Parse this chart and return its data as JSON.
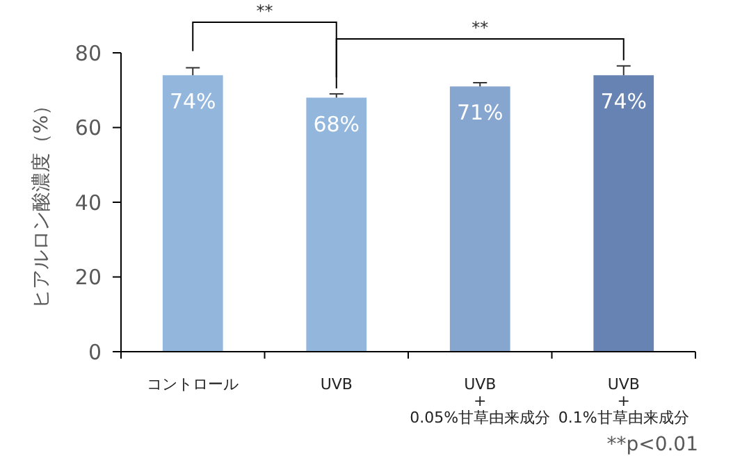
{
  "chart_data": {
    "type": "bar",
    "ylabel": "ヒアルロン酸濃度（%）",
    "categories": [
      "コントロール",
      "UVB",
      "UVB\n+\n0.05%甘草由来成分",
      "UVB\n+\n0.1%甘草由来成分"
    ],
    "values": [
      74,
      68,
      71,
      74
    ],
    "colors": [
      "#92b6dc",
      "#92b6dc",
      "#86a6cf",
      "#6683b3"
    ],
    "errors": [
      2,
      1,
      1,
      2.5
    ],
    "value_labels": [
      "74%",
      "68%",
      "71%",
      "74%"
    ],
    "ylim": [
      0,
      80
    ],
    "yticks": [
      0,
      20,
      40,
      60,
      80
    ],
    "annotations": [
      "**",
      "**",
      "**p<0.01"
    ]
  }
}
